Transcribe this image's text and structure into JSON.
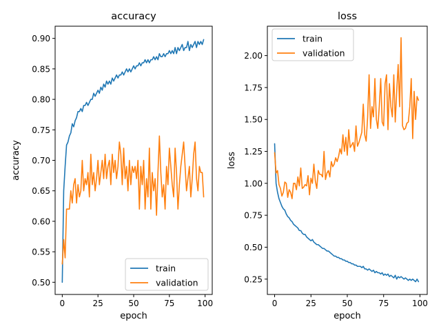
{
  "chart_data": [
    {
      "type": "line",
      "title": "accuracy",
      "xlabel": "epoch",
      "ylabel": "accuracy",
      "xlim": [
        -5,
        105
      ],
      "ylim": [
        0.48,
        0.92
      ],
      "xticks": [
        0,
        25,
        50,
        75,
        100
      ],
      "xtick_labels": [
        "0",
        "25",
        "50",
        "75",
        "100"
      ],
      "yticks": [
        0.5,
        0.55,
        0.6,
        0.65,
        0.7,
        0.75,
        0.8,
        0.85,
        0.9
      ],
      "ytick_labels": [
        "0.50",
        "0.55",
        "0.60",
        "0.65",
        "0.70",
        "0.75",
        "0.80",
        "0.85",
        "0.90"
      ],
      "legend": "lower-right",
      "grid": false,
      "series": [
        {
          "name": "train",
          "color": "#1f77b4",
          "x": [
            0,
            1,
            2,
            3,
            4,
            5,
            6,
            7,
            8,
            9,
            10,
            11,
            12,
            13,
            14,
            15,
            16,
            17,
            18,
            19,
            20,
            21,
            22,
            23,
            24,
            25,
            26,
            27,
            28,
            29,
            30,
            31,
            32,
            33,
            34,
            35,
            36,
            37,
            38,
            39,
            40,
            41,
            42,
            43,
            44,
            45,
            46,
            47,
            48,
            49,
            50,
            51,
            52,
            53,
            54,
            55,
            56,
            57,
            58,
            59,
            60,
            61,
            62,
            63,
            64,
            65,
            66,
            67,
            68,
            69,
            70,
            71,
            72,
            73,
            74,
            75,
            76,
            77,
            78,
            79,
            80,
            81,
            82,
            83,
            84,
            85,
            86,
            87,
            88,
            89,
            90,
            91,
            92,
            93,
            94,
            95,
            96,
            97,
            98,
            99
          ],
          "values": [
            0.5,
            0.65,
            0.69,
            0.725,
            0.73,
            0.74,
            0.745,
            0.76,
            0.755,
            0.765,
            0.77,
            0.78,
            0.78,
            0.785,
            0.78,
            0.79,
            0.79,
            0.795,
            0.79,
            0.795,
            0.8,
            0.8,
            0.81,
            0.805,
            0.81,
            0.815,
            0.81,
            0.82,
            0.815,
            0.825,
            0.82,
            0.83,
            0.825,
            0.83,
            0.825,
            0.835,
            0.83,
            0.835,
            0.84,
            0.835,
            0.84,
            0.84,
            0.845,
            0.84,
            0.845,
            0.85,
            0.845,
            0.85,
            0.845,
            0.85,
            0.855,
            0.85,
            0.855,
            0.855,
            0.86,
            0.855,
            0.86,
            0.86,
            0.865,
            0.86,
            0.865,
            0.86,
            0.865,
            0.865,
            0.87,
            0.865,
            0.87,
            0.865,
            0.875,
            0.87,
            0.87,
            0.875,
            0.87,
            0.875,
            0.875,
            0.88,
            0.875,
            0.88,
            0.875,
            0.885,
            0.875,
            0.885,
            0.88,
            0.885,
            0.89,
            0.88,
            0.885,
            0.885,
            0.895,
            0.88,
            0.89,
            0.885,
            0.89,
            0.895,
            0.885,
            0.895,
            0.89,
            0.895,
            0.89,
            0.898
          ]
        },
        {
          "name": "validation",
          "color": "#ff7f0e",
          "x": [
            0,
            1,
            2,
            3,
            4,
            5,
            6,
            7,
            8,
            9,
            10,
            11,
            12,
            13,
            14,
            15,
            16,
            17,
            18,
            19,
            20,
            21,
            22,
            23,
            24,
            25,
            26,
            27,
            28,
            29,
            30,
            31,
            32,
            33,
            34,
            35,
            36,
            37,
            38,
            39,
            40,
            41,
            42,
            43,
            44,
            45,
            46,
            47,
            48,
            49,
            50,
            51,
            52,
            53,
            54,
            55,
            56,
            57,
            58,
            59,
            60,
            61,
            62,
            63,
            64,
            65,
            66,
            67,
            68,
            69,
            70,
            71,
            72,
            73,
            74,
            75,
            76,
            77,
            78,
            79,
            80,
            81,
            82,
            83,
            84,
            85,
            86,
            87,
            88,
            89,
            90,
            91,
            92,
            93,
            94,
            95,
            96,
            97,
            98,
            99
          ],
          "values": [
            0.53,
            0.57,
            0.54,
            0.62,
            0.62,
            0.62,
            0.65,
            0.63,
            0.66,
            0.67,
            0.63,
            0.66,
            0.64,
            0.65,
            0.7,
            0.65,
            0.67,
            0.66,
            0.68,
            0.64,
            0.71,
            0.66,
            0.68,
            0.65,
            0.67,
            0.7,
            0.66,
            0.68,
            0.7,
            0.67,
            0.71,
            0.67,
            0.69,
            0.7,
            0.66,
            0.71,
            0.68,
            0.7,
            0.67,
            0.69,
            0.73,
            0.71,
            0.66,
            0.72,
            0.67,
            0.69,
            0.65,
            0.7,
            0.66,
            0.69,
            0.68,
            0.69,
            0.67,
            0.7,
            0.62,
            0.69,
            0.66,
            0.7,
            0.62,
            0.67,
            0.64,
            0.72,
            0.62,
            0.68,
            0.65,
            0.67,
            0.61,
            0.68,
            0.74,
            0.68,
            0.64,
            0.66,
            0.62,
            0.69,
            0.66,
            0.72,
            0.69,
            0.66,
            0.64,
            0.72,
            0.68,
            0.62,
            0.66,
            0.69,
            0.71,
            0.73,
            0.69,
            0.65,
            0.67,
            0.69,
            0.64,
            0.67,
            0.71,
            0.73,
            0.67,
            0.65,
            0.69,
            0.68,
            0.68,
            0.64
          ]
        }
      ]
    },
    {
      "type": "line",
      "title": "loss",
      "xlabel": "epoch",
      "ylabel": "loss",
      "xlim": [
        -5,
        105
      ],
      "ylim": [
        0.13,
        2.23
      ],
      "xticks": [
        0,
        25,
        50,
        75,
        100
      ],
      "xtick_labels": [
        "0",
        "25",
        "50",
        "75",
        "100"
      ],
      "yticks": [
        0.25,
        0.5,
        0.75,
        1.0,
        1.25,
        1.5,
        1.75,
        2.0
      ],
      "ytick_labels": [
        "0.25",
        "0.50",
        "0.75",
        "1.00",
        "1.25",
        "1.50",
        "1.75",
        "2.00"
      ],
      "legend": "top-left",
      "grid": false,
      "series": [
        {
          "name": "train",
          "color": "#1f77b4",
          "x": [
            0,
            1,
            2,
            3,
            4,
            5,
            6,
            7,
            8,
            9,
            10,
            11,
            12,
            13,
            14,
            15,
            16,
            17,
            18,
            19,
            20,
            21,
            22,
            23,
            24,
            25,
            26,
            27,
            28,
            29,
            30,
            31,
            32,
            33,
            34,
            35,
            36,
            37,
            38,
            39,
            40,
            41,
            42,
            43,
            44,
            45,
            46,
            47,
            48,
            49,
            50,
            51,
            52,
            53,
            54,
            55,
            56,
            57,
            58,
            59,
            60,
            61,
            62,
            63,
            64,
            65,
            66,
            67,
            68,
            69,
            70,
            71,
            72,
            73,
            74,
            75,
            76,
            77,
            78,
            79,
            80,
            81,
            82,
            83,
            84,
            85,
            86,
            87,
            88,
            89,
            90,
            91,
            92,
            93,
            94,
            95,
            96,
            97,
            98,
            99
          ],
          "values": [
            1.31,
            1.0,
            0.93,
            0.88,
            0.85,
            0.82,
            0.8,
            0.79,
            0.76,
            0.74,
            0.73,
            0.71,
            0.7,
            0.68,
            0.67,
            0.66,
            0.65,
            0.63,
            0.63,
            0.61,
            0.6,
            0.6,
            0.58,
            0.57,
            0.56,
            0.55,
            0.56,
            0.54,
            0.53,
            0.52,
            0.52,
            0.51,
            0.5,
            0.49,
            0.49,
            0.48,
            0.47,
            0.47,
            0.46,
            0.45,
            0.44,
            0.43,
            0.43,
            0.42,
            0.42,
            0.41,
            0.41,
            0.4,
            0.4,
            0.39,
            0.39,
            0.38,
            0.38,
            0.37,
            0.37,
            0.36,
            0.36,
            0.35,
            0.35,
            0.35,
            0.34,
            0.35,
            0.33,
            0.33,
            0.32,
            0.33,
            0.32,
            0.31,
            0.32,
            0.3,
            0.31,
            0.3,
            0.3,
            0.29,
            0.3,
            0.28,
            0.29,
            0.28,
            0.29,
            0.27,
            0.28,
            0.27,
            0.26,
            0.28,
            0.25,
            0.27,
            0.26,
            0.27,
            0.26,
            0.25,
            0.26,
            0.25,
            0.24,
            0.25,
            0.24,
            0.25,
            0.24,
            0.23,
            0.25,
            0.23
          ]
        },
        {
          "name": "validation",
          "color": "#ff7f0e",
          "x": [
            0,
            1,
            2,
            3,
            4,
            5,
            6,
            7,
            8,
            9,
            10,
            11,
            12,
            13,
            14,
            15,
            16,
            17,
            18,
            19,
            20,
            21,
            22,
            23,
            24,
            25,
            26,
            27,
            28,
            29,
            30,
            31,
            32,
            33,
            34,
            35,
            36,
            37,
            38,
            39,
            40,
            41,
            42,
            43,
            44,
            45,
            46,
            47,
            48,
            49,
            50,
            51,
            52,
            53,
            54,
            55,
            56,
            57,
            58,
            59,
            60,
            61,
            62,
            63,
            64,
            65,
            66,
            67,
            68,
            69,
            70,
            71,
            72,
            73,
            74,
            75,
            76,
            77,
            78,
            79,
            80,
            81,
            82,
            83,
            84,
            85,
            86,
            87,
            88,
            89,
            90,
            91,
            92,
            93,
            94,
            95,
            96,
            97,
            98,
            99
          ],
          "values": [
            1.24,
            1.08,
            1.1,
            0.99,
            0.96,
            0.9,
            0.93,
            1.01,
            1.0,
            0.89,
            0.95,
            0.93,
            0.88,
            1.0,
            1.0,
            0.95,
            1.05,
            0.98,
            1.12,
            0.96,
            0.97,
            0.99,
            0.98,
            1.06,
            0.91,
            1.04,
            1.0,
            1.15,
            1.02,
            0.96,
            1.1,
            1.07,
            1.07,
            1.05,
            1.25,
            1.03,
            1.08,
            1.1,
            1.05,
            1.17,
            1.13,
            1.15,
            1.2,
            1.17,
            1.21,
            1.27,
            1.23,
            1.38,
            1.25,
            1.36,
            1.22,
            1.42,
            1.28,
            1.3,
            1.32,
            1.25,
            1.45,
            1.29,
            1.32,
            1.36,
            1.4,
            1.62,
            1.38,
            1.33,
            1.52,
            1.85,
            1.43,
            1.6,
            1.52,
            1.82,
            1.5,
            1.43,
            1.6,
            1.82,
            1.48,
            1.45,
            1.78,
            1.85,
            1.42,
            1.78,
            1.6,
            1.52,
            1.85,
            1.48,
            1.72,
            1.93,
            1.6,
            2.14,
            1.45,
            1.42,
            1.43,
            1.47,
            1.48,
            1.6,
            1.82,
            1.35,
            1.72,
            1.5,
            1.68,
            1.65
          ]
        }
      ]
    }
  ]
}
